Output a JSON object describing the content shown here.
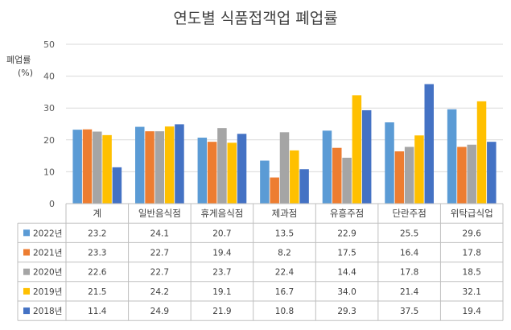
{
  "chart_data": {
    "type": "bar",
    "title": "연도별 식품접객업 폐업률",
    "ylabel": "폐업률",
    "yunit": "(%)",
    "ylim": [
      0,
      50
    ],
    "yticks": [
      0,
      10,
      20,
      30,
      40,
      50
    ],
    "grid": true,
    "categories": [
      "계",
      "일반음식점",
      "휴게음식점",
      "제과점",
      "유흥주점",
      "단란주점",
      "위탁급식업"
    ],
    "series": [
      {
        "name": "2022년",
        "color": "#5B9BD5",
        "values": [
          23.2,
          24.1,
          20.7,
          13.5,
          22.9,
          25.5,
          29.6
        ]
      },
      {
        "name": "2021년",
        "color": "#ED7D31",
        "values": [
          23.3,
          22.7,
          19.4,
          8.2,
          17.5,
          16.4,
          17.8
        ]
      },
      {
        "name": "2020년",
        "color": "#A5A5A5",
        "values": [
          22.6,
          22.7,
          23.7,
          22.4,
          14.4,
          17.8,
          18.5
        ]
      },
      {
        "name": "2019년",
        "color": "#FFC000",
        "values": [
          21.5,
          24.2,
          19.1,
          16.7,
          34.0,
          21.4,
          32.1
        ]
      },
      {
        "name": "2018년",
        "color": "#4472C4",
        "values": [
          11.4,
          24.9,
          21.9,
          10.8,
          29.3,
          37.5,
          19.4
        ]
      }
    ],
    "data_table": true
  }
}
